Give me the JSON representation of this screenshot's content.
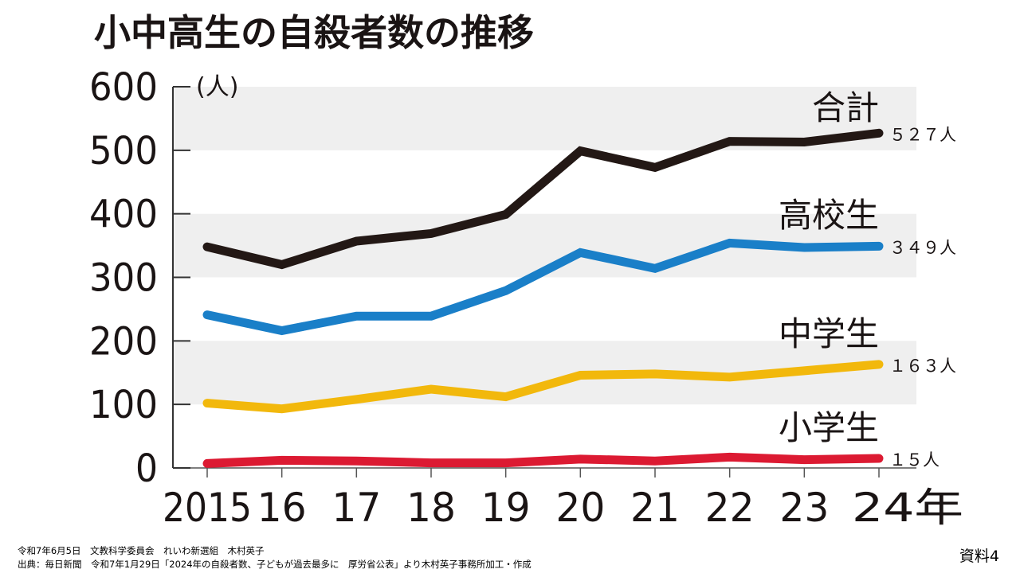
{
  "title": "小中高生の自殺者数の推移",
  "footer": {
    "line1": "令和7年6月5日　文教科学委員会　れいわ新選組　木村英子",
    "line2": "出典：毎日新聞　令和7年1月29日「2024年の自殺者数、子どもが過去最多に　厚労省公表」より木村英子事務所加工・作成"
  },
  "doc_label": "資料4",
  "chart_data": {
    "type": "line",
    "title": "小中高生の自殺者数の推移",
    "xlabel": "",
    "ylabel": "(人)",
    "x": [
      "2015",
      "16",
      "17",
      "18",
      "19",
      "20",
      "21",
      "22",
      "23",
      "24年"
    ],
    "ylim": [
      0,
      600
    ],
    "yticks": [
      0,
      100,
      200,
      300,
      400,
      500,
      600
    ],
    "grid": "alternating horizontal bands",
    "legend": "inline labels at right end of each line",
    "series": [
      {
        "name": "合計",
        "color": "#231815",
        "values": [
          348,
          320,
          357,
          369,
          399,
          499,
          473,
          514,
          513,
          527
        ],
        "end_label": "５２７人"
      },
      {
        "name": "高校生",
        "color": "#1a7fc8",
        "values": [
          241,
          216,
          239,
          239,
          279,
          339,
          314,
          354,
          347,
          349
        ],
        "end_label": "３４９人"
      },
      {
        "name": "中学生",
        "color": "#f2b80c",
        "values": [
          102,
          93,
          108,
          124,
          112,
          146,
          148,
          143,
          153,
          163
        ],
        "end_label": "１６３人"
      },
      {
        "name": "小学生",
        "color": "#dc1a32",
        "values": [
          7,
          12,
          11,
          8,
          8,
          14,
          11,
          17,
          13,
          15
        ],
        "end_label": "１５人"
      }
    ]
  }
}
